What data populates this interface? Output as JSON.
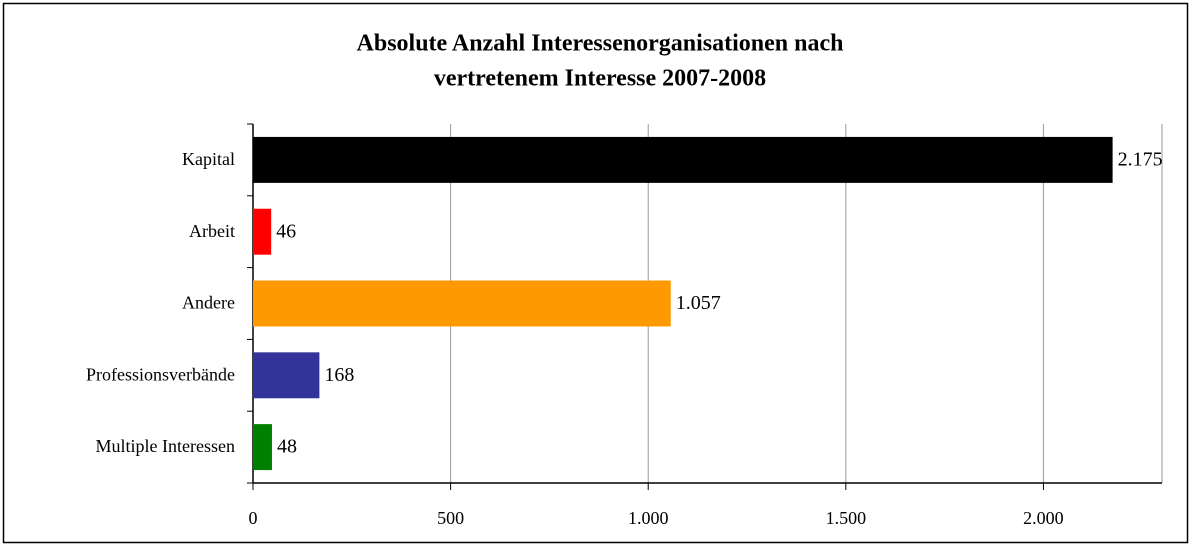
{
  "chart_data": {
    "type": "bar",
    "orientation": "horizontal",
    "title": [
      "Absolute Anzahl Interessenorganisationen nach",
      "vertretenem Interesse 2007-2008"
    ],
    "categories": [
      "Kapital",
      "Arbeit",
      "Andere",
      "Professionsverbände",
      "Multiple Interessen"
    ],
    "values": [
      2175,
      46,
      1057,
      168,
      48
    ],
    "value_labels": [
      "2.175",
      "46",
      "1.057",
      "168",
      "48"
    ],
    "colors": [
      "#000000",
      "#ff0000",
      "#ff9900",
      "#333399",
      "#008000"
    ],
    "xlim": [
      0,
      2300
    ],
    "xticks": [
      0,
      500,
      {
        "value": 1000,
        "label": "1.000"
      },
      {
        "value": 1500,
        "label": "1.500"
      },
      {
        "value": 2000,
        "label": "2.000"
      }
    ],
    "grid": true
  }
}
